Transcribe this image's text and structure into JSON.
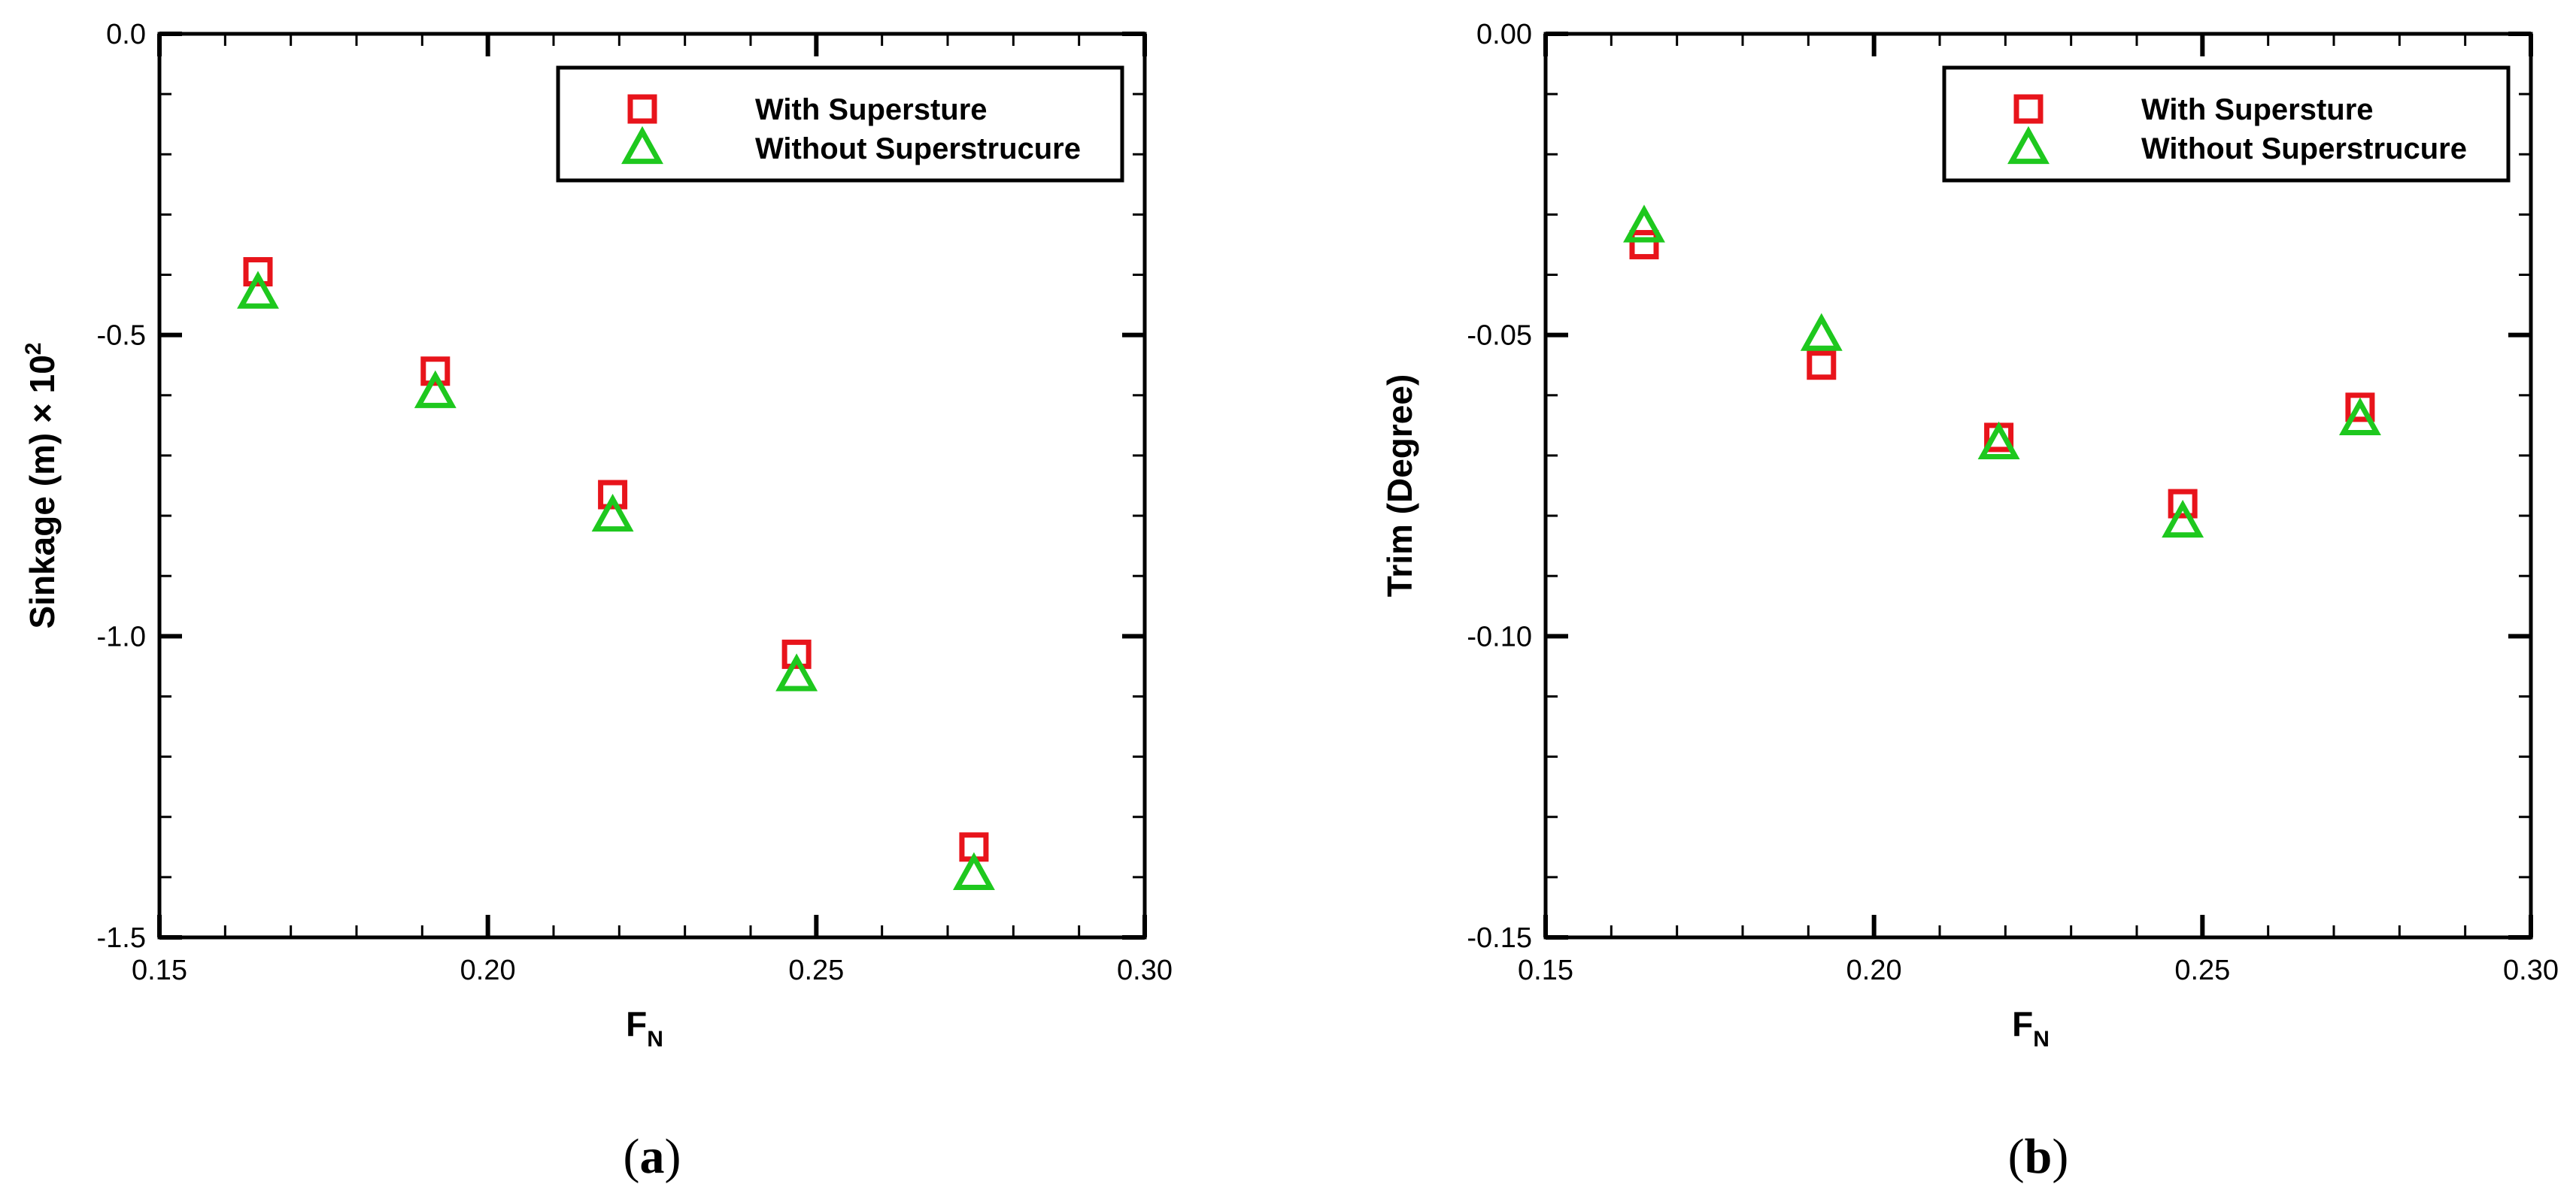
{
  "chart_data": [
    {
      "type": "scatter",
      "panel_label": {
        "open": "(",
        "letter": "a",
        "close": ")"
      },
      "xlabel": {
        "main": "F",
        "sub": "N"
      },
      "ylabel": {
        "main": "Sinkage (m) × 10",
        "sup": "2"
      },
      "xlim": [
        0.15,
        0.3
      ],
      "ylim": [
        -1.5,
        0.0
      ],
      "xticks": [
        "0.15",
        "0.20",
        "0.25",
        "0.30"
      ],
      "yticks": [
        "0.0",
        "-0.5",
        "-1.0",
        "-1.5"
      ],
      "legend_position": "top-right",
      "series": [
        {
          "name": "With Supersture",
          "marker": "square",
          "color": "#e8141b",
          "x": [
            0.165,
            0.192,
            0.219,
            0.247,
            0.274
          ],
          "y": [
            -0.395,
            -0.56,
            -0.765,
            -1.03,
            -1.35
          ]
        },
        {
          "name": "Without Superstrucure",
          "marker": "triangle",
          "color": "#1ec81e",
          "x": [
            0.165,
            0.192,
            0.219,
            0.247,
            0.274
          ],
          "y": [
            -0.43,
            -0.595,
            -0.8,
            -1.065,
            -1.395
          ]
        }
      ]
    },
    {
      "type": "scatter",
      "panel_label": {
        "open": "(",
        "letter": "b",
        "close": ")"
      },
      "xlabel": {
        "main": "F",
        "sub": "N"
      },
      "ylabel": {
        "main": "Trim (Degree)",
        "sup": ""
      },
      "xlim": [
        0.15,
        0.3
      ],
      "ylim": [
        -0.15,
        0.0
      ],
      "xticks": [
        "0.15",
        "0.20",
        "0.25",
        "0.30"
      ],
      "yticks": [
        "0.00",
        "-0.05",
        "-0.10",
        "-0.15"
      ],
      "legend_position": "top-right",
      "series": [
        {
          "name": "With Supersture",
          "marker": "square",
          "color": "#e8141b",
          "x": [
            0.165,
            0.192,
            0.219,
            0.247,
            0.274
          ],
          "y": [
            -0.035,
            -0.055,
            -0.067,
            -0.078,
            -0.062
          ]
        },
        {
          "name": "Without Superstrucure",
          "marker": "triangle",
          "color": "#1ec81e",
          "x": [
            0.165,
            0.192,
            0.219,
            0.247,
            0.274
          ],
          "y": [
            -0.032,
            -0.05,
            -0.068,
            -0.081,
            -0.064
          ]
        }
      ]
    }
  ]
}
